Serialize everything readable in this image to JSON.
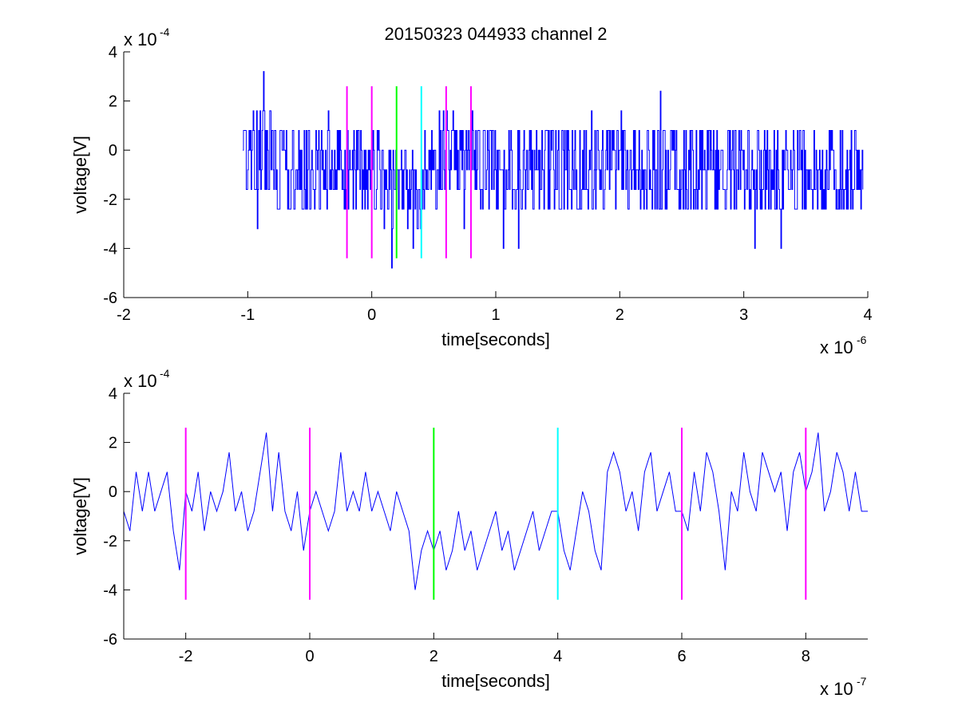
{
  "chart_data": [
    {
      "type": "line",
      "title": "20150323 044933 channel 2",
      "xlabel": "time[seconds]",
      "ylabel": "voltage[V]",
      "xlim": [
        -2,
        4
      ],
      "ylim": [
        -6,
        4
      ],
      "x_ticks": [
        -2,
        -1,
        0,
        1,
        2,
        3,
        4
      ],
      "x_tick_labels": [
        "-2",
        "-1",
        "0",
        "1",
        "2",
        "3",
        "4"
      ],
      "y_ticks": [
        -6,
        -4,
        -2,
        0,
        2,
        4
      ],
      "y_tick_labels": [
        "-6",
        "-4",
        "-2",
        "0",
        "2",
        "4"
      ],
      "x_multiplier": {
        "base": "x 10",
        "exponent": "-6"
      },
      "y_multiplier": {
        "base": "x 10",
        "exponent": "-4"
      },
      "grid": false,
      "series": [
        {
          "color": "#0000ff",
          "style": "step",
          "x_start": -1.04,
          "x_end": 3.96,
          "noise_levels": [
            -1.6,
            -0.8,
            0,
            0.8,
            1.6
          ],
          "envelope": [
            {
              "x": -1.04,
              "mean": -0.3
            },
            {
              "x": -0.3,
              "mean": -0.6
            },
            {
              "x": 0.0,
              "mean": -0.9
            },
            {
              "x": 0.2,
              "mean": -2.0
            },
            {
              "x": 0.4,
              "mean": -1.3
            },
            {
              "x": 0.6,
              "mean": 0.0
            },
            {
              "x": 1.0,
              "mean": -0.6
            },
            {
              "x": 3.96,
              "mean": -0.4
            }
          ]
        }
      ],
      "markers": [
        {
          "x": -0.2,
          "y_top": 2.6,
          "y_bottom": -4.4,
          "color": "#ff00ff"
        },
        {
          "x": 0.0,
          "y_top": 2.6,
          "y_bottom": -4.4,
          "color": "#ff00ff"
        },
        {
          "x": 0.2,
          "y_top": 2.6,
          "y_bottom": -4.4,
          "color": "#00ff00"
        },
        {
          "x": 0.4,
          "y_top": 2.6,
          "y_bottom": -4.4,
          "color": "#00ffff"
        },
        {
          "x": 0.6,
          "y_top": 2.6,
          "y_bottom": -4.4,
          "color": "#ff00ff"
        },
        {
          "x": 0.8,
          "y_top": 2.6,
          "y_bottom": -4.4,
          "color": "#ff00ff"
        }
      ]
    },
    {
      "type": "line",
      "title": "",
      "xlabel": "time[seconds]",
      "ylabel": "voltage[V]",
      "xlim": [
        -3,
        9
      ],
      "ylim": [
        -6,
        4
      ],
      "x_ticks": [
        -2,
        0,
        2,
        4,
        6,
        8
      ],
      "x_tick_labels": [
        "-2",
        "0",
        "2",
        "4",
        "6",
        "8"
      ],
      "y_ticks": [
        -6,
        -4,
        -2,
        0,
        2,
        4
      ],
      "y_tick_labels": [
        "-6",
        "-4",
        "-2",
        "0",
        "2",
        "4"
      ],
      "x_multiplier": {
        "base": "x 10",
        "exponent": "-7"
      },
      "y_multiplier": {
        "base": "x 10",
        "exponent": "-4"
      },
      "grid": false,
      "series": [
        {
          "color": "#0000ff",
          "style": "line",
          "x": [
            -3.0,
            -2.9,
            -2.8,
            -2.7,
            -2.6,
            -2.5,
            -2.4,
            -2.3,
            -2.2,
            -2.1,
            -2.0,
            -1.9,
            -1.8,
            -1.7,
            -1.6,
            -1.5,
            -1.4,
            -1.3,
            -1.2,
            -1.1,
            -1.0,
            -0.9,
            -0.8,
            -0.7,
            -0.6,
            -0.5,
            -0.4,
            -0.3,
            -0.2,
            -0.1,
            0.0,
            0.1,
            0.2,
            0.3,
            0.4,
            0.5,
            0.6,
            0.7,
            0.8,
            0.9,
            1.0,
            1.1,
            1.2,
            1.3,
            1.4,
            1.5,
            1.6,
            1.7,
            1.8,
            1.9,
            2.0,
            2.1,
            2.2,
            2.3,
            2.4,
            2.5,
            2.6,
            2.7,
            2.8,
            2.9,
            3.0,
            3.1,
            3.2,
            3.3,
            3.4,
            3.5,
            3.6,
            3.7,
            3.8,
            3.9,
            4.0,
            4.1,
            4.2,
            4.3,
            4.4,
            4.5,
            4.6,
            4.7,
            4.8,
            4.9,
            5.0,
            5.1,
            5.2,
            5.3,
            5.4,
            5.5,
            5.6,
            5.7,
            5.8,
            5.9,
            6.0,
            6.1,
            6.2,
            6.3,
            6.4,
            6.5,
            6.6,
            6.7,
            6.8,
            6.9,
            7.0,
            7.1,
            7.2,
            7.3,
            7.4,
            7.5,
            7.6,
            7.7,
            7.8,
            7.9,
            8.0,
            8.1,
            8.2,
            8.3,
            8.4,
            8.5,
            8.6,
            8.7,
            8.8,
            8.9,
            9.0
          ],
          "y": [
            -0.8,
            -1.6,
            0.8,
            -0.8,
            0.8,
            -0.8,
            0.0,
            0.8,
            -1.6,
            -3.2,
            0.0,
            -0.8,
            0.8,
            -1.6,
            0.0,
            -0.8,
            0.0,
            1.6,
            -0.8,
            0.0,
            -1.6,
            -0.8,
            0.8,
            2.4,
            -0.8,
            1.6,
            -0.8,
            -1.6,
            0.0,
            -2.4,
            -0.8,
            0.0,
            -0.8,
            -1.6,
            -0.8,
            1.6,
            -0.8,
            0.0,
            -0.8,
            0.8,
            -0.8,
            0.0,
            -0.8,
            -1.6,
            0.0,
            -0.8,
            -1.6,
            -4.0,
            -2.4,
            -1.6,
            -2.4,
            -1.6,
            -3.2,
            -2.4,
            -0.8,
            -2.4,
            -1.6,
            -3.2,
            -2.4,
            -1.6,
            -0.8,
            -2.4,
            -1.6,
            -3.2,
            -2.4,
            -1.6,
            -0.8,
            -2.4,
            -1.6,
            -0.8,
            -0.8,
            -2.4,
            -3.2,
            -1.6,
            0.0,
            -0.8,
            -2.4,
            -3.2,
            0.8,
            1.6,
            0.8,
            -0.8,
            0.0,
            -1.6,
            0.8,
            1.6,
            -0.8,
            0.0,
            0.8,
            -0.8,
            -0.8,
            -1.6,
            0.8,
            -0.8,
            1.6,
            0.8,
            -0.8,
            -3.2,
            0.0,
            -0.8,
            1.6,
            0.0,
            -0.8,
            1.6,
            0.8,
            0.0,
            0.8,
            -1.6,
            0.8,
            1.6,
            0.0,
            0.8,
            2.4,
            -0.8,
            0.0,
            1.6,
            0.8,
            -0.8,
            0.8,
            -0.8,
            -0.8
          ]
        }
      ],
      "markers": [
        {
          "x": -2,
          "y_top": 2.6,
          "y_bottom": -4.4,
          "color": "#ff00ff"
        },
        {
          "x": 0,
          "y_top": 2.6,
          "y_bottom": -4.4,
          "color": "#ff00ff"
        },
        {
          "x": 2,
          "y_top": 2.6,
          "y_bottom": -4.4,
          "color": "#00ff00"
        },
        {
          "x": 4,
          "y_top": 2.6,
          "y_bottom": -4.4,
          "color": "#00ffff"
        },
        {
          "x": 6,
          "y_top": 2.6,
          "y_bottom": -4.4,
          "color": "#ff00ff"
        },
        {
          "x": 8,
          "y_top": 2.6,
          "y_bottom": -4.4,
          "color": "#ff00ff"
        }
      ]
    }
  ]
}
